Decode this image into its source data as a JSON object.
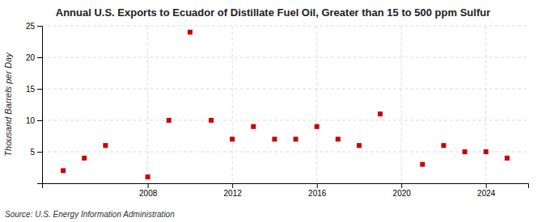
{
  "chart_data": {
    "type": "scatter",
    "title": "Annual U.S. Exports to Ecuador of Distillate Fuel Oil, Greater than 15 to 500 ppm Sulfur",
    "ylabel": "Thousand Barrels per Day",
    "annotation": "Source: U.S. Energy Information Administration",
    "x": [
      2004,
      2005,
      2006,
      2008,
      2009,
      2010,
      2011,
      2012,
      2013,
      2014,
      2015,
      2016,
      2017,
      2018,
      2019,
      2021,
      2022,
      2023,
      2024,
      2025
    ],
    "values": [
      2,
      4,
      6,
      1,
      10,
      24,
      10,
      7,
      9,
      7,
      7,
      9,
      7,
      6,
      11,
      3,
      6,
      5,
      5,
      4
    ],
    "color": "#cc0000",
    "marker": "square",
    "xlim": [
      2003,
      2026
    ],
    "xticks": [
      2008,
      2012,
      2016,
      2020,
      2024
    ],
    "ylim": [
      0,
      25
    ],
    "yticks": [
      5,
      10,
      15,
      20,
      25
    ],
    "grid": true
  }
}
